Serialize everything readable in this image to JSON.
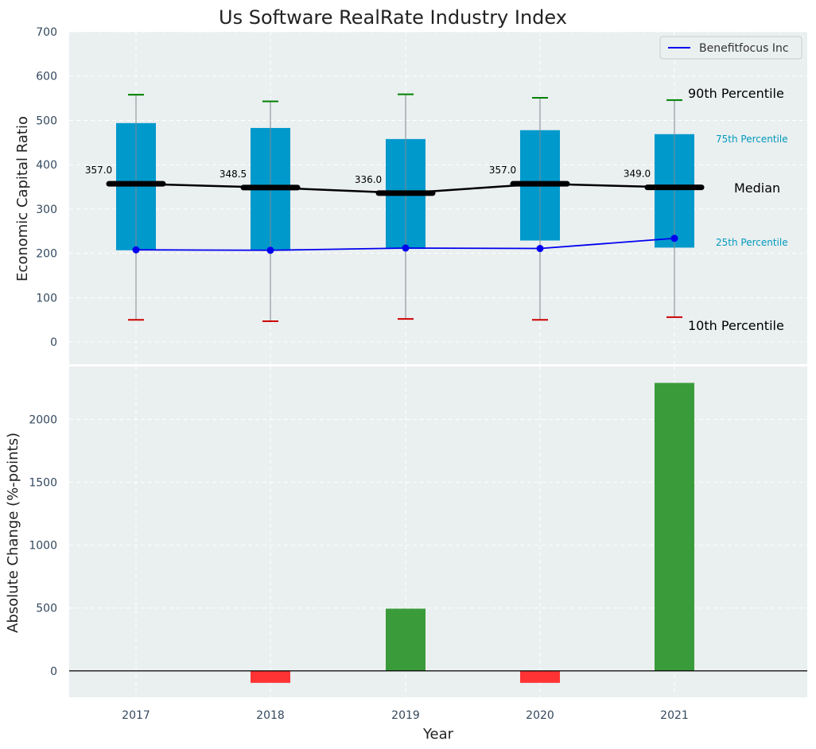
{
  "chart_data": [
    {
      "type": "box",
      "title": "Us Software RealRate Industry Index",
      "xlabel": "",
      "ylabel": "Economic Capital Ratio",
      "ylim": [
        -50,
        700
      ],
      "yticks": [
        0,
        100,
        200,
        300,
        400,
        500,
        600,
        700
      ],
      "categories": [
        "2017",
        "2018",
        "2019",
        "2020",
        "2021"
      ],
      "grid": true,
      "legend_position": "top-right",
      "percentiles": {
        "p10": [
          50,
          47,
          52,
          50,
          56
        ],
        "p25": [
          207,
          206,
          210,
          229,
          213
        ],
        "median": [
          357.0,
          348.5,
          336.0,
          357.0,
          349.0
        ],
        "p75": [
          494,
          483,
          458,
          478,
          469
        ],
        "p90": [
          558,
          543,
          559,
          551,
          546
        ]
      },
      "median_labels": [
        "357.0",
        "348.5",
        "336.0",
        "357.0",
        "349.0"
      ],
      "series": [
        {
          "name": "Benefitfocus Inc",
          "values": [
            208,
            207,
            212,
            211,
            234
          ],
          "color": "#0000ee"
        }
      ],
      "annotations": {
        "p90": "90th Percentile",
        "p75": "75th Percentile",
        "median": "Median",
        "p25": "25th Percentile",
        "p10": "10th Percentile"
      },
      "colors": {
        "box": "#0099cc",
        "whisker_top": "#008000",
        "whisker_bottom": "#cc0000",
        "median_line": "#000000",
        "annotation_teal": "#0099bb"
      }
    },
    {
      "type": "bar",
      "xlabel": "Year",
      "ylabel": "Absolute Change (%-points)",
      "ylim": [
        -210,
        2420
      ],
      "yticks": [
        0,
        500,
        1000,
        1500,
        2000
      ],
      "categories": [
        "2017",
        "2018",
        "2019",
        "2020",
        "2021"
      ],
      "values": [
        0,
        -95,
        495,
        -95,
        2290
      ],
      "colors": {
        "positive": "#3a9b3a",
        "negative": "#ff3333",
        "zero_line": "#000000"
      }
    }
  ]
}
